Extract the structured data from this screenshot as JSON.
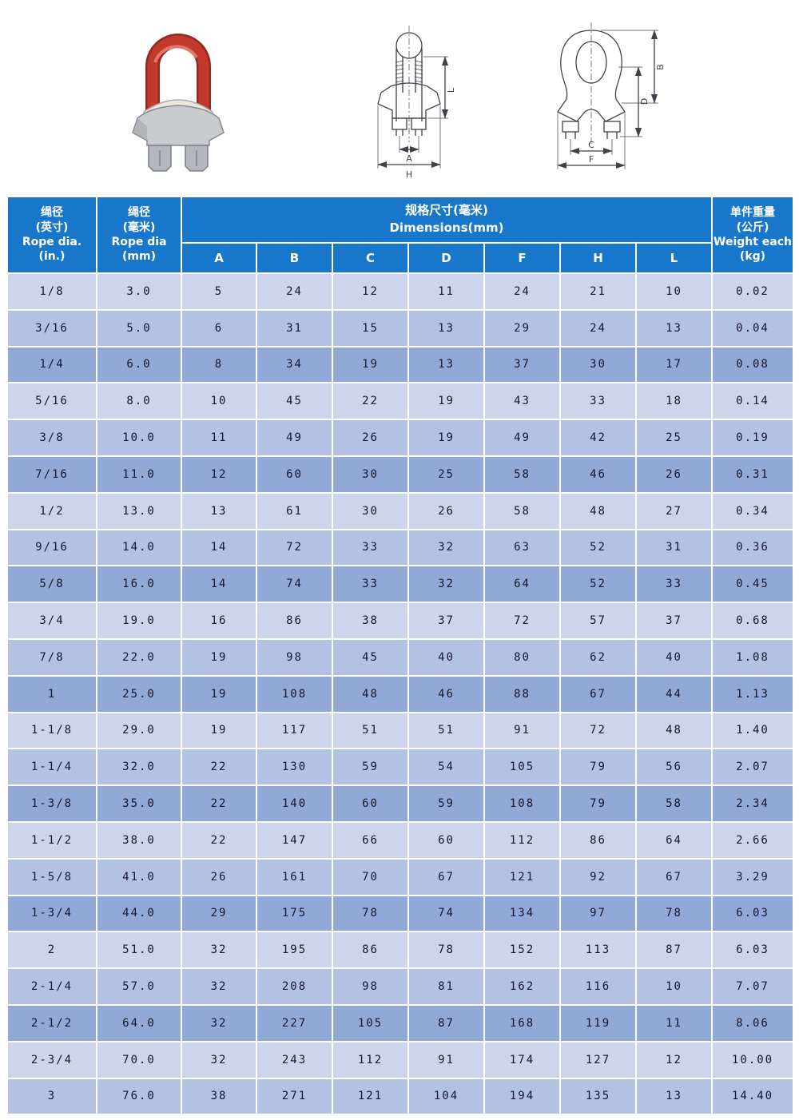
{
  "colors": {
    "header_blue": "#1877cb",
    "row_light": "#ccd5eb",
    "row_medium": "#b3c2e3",
    "row_dark": "#92a8d6",
    "grid_white": "#ffffff",
    "cell_text": "#15152e",
    "header_text": "#ffffff",
    "drawing_stroke": "#3c4248",
    "photo_red": "#c0392b",
    "photo_red_dark": "#8e2a20",
    "photo_gray": "#c9cbce"
  },
  "figures": {
    "photo": {
      "name": "wire rope clip product photo"
    },
    "front_view": {
      "labels": {
        "a": "A",
        "h": "H",
        "l": "L"
      }
    },
    "side_view": {
      "labels": {
        "b": "B",
        "c": "C",
        "d": "D",
        "f": "F"
      }
    }
  },
  "table": {
    "header": {
      "rope_in": "绳径\n(英寸)\nRope dia.\n(in.)",
      "rope_mm": "绳径\n(毫米)\nRope dia\n(mm)",
      "dimensions": "规格尺寸(毫米)\nDimensions(mm)",
      "dim_letters": [
        "A",
        "B",
        "C",
        "D",
        "F",
        "H",
        "L"
      ],
      "weight": "单件重量\n(公斤)\nWeight each\n(kg)"
    },
    "rows": [
      [
        "1/8",
        "3.0",
        "5",
        "24",
        "12",
        "11",
        "24",
        "21",
        "10",
        "0.02"
      ],
      [
        "3/16",
        "5.0",
        "6",
        "31",
        "15",
        "13",
        "29",
        "24",
        "13",
        "0.04"
      ],
      [
        "1/4",
        "6.0",
        "8",
        "34",
        "19",
        "13",
        "37",
        "30",
        "17",
        "0.08"
      ],
      [
        "5/16",
        "8.0",
        "10",
        "45",
        "22",
        "19",
        "43",
        "33",
        "18",
        "0.14"
      ],
      [
        "3/8",
        "10.0",
        "11",
        "49",
        "26",
        "19",
        "49",
        "42",
        "25",
        "0.19"
      ],
      [
        "7/16",
        "11.0",
        "12",
        "60",
        "30",
        "25",
        "58",
        "46",
        "26",
        "0.31"
      ],
      [
        "1/2",
        "13.0",
        "13",
        "61",
        "30",
        "26",
        "58",
        "48",
        "27",
        "0.34"
      ],
      [
        "9/16",
        "14.0",
        "14",
        "72",
        "33",
        "32",
        "63",
        "52",
        "31",
        "0.36"
      ],
      [
        "5/8",
        "16.0",
        "14",
        "74",
        "33",
        "32",
        "64",
        "52",
        "33",
        "0.45"
      ],
      [
        "3/4",
        "19.0",
        "16",
        "86",
        "38",
        "37",
        "72",
        "57",
        "37",
        "0.68"
      ],
      [
        "7/8",
        "22.0",
        "19",
        "98",
        "45",
        "40",
        "80",
        "62",
        "40",
        "1.08"
      ],
      [
        "1",
        "25.0",
        "19",
        "108",
        "48",
        "46",
        "88",
        "67",
        "44",
        "1.13"
      ],
      [
        "1-1/8",
        "29.0",
        "19",
        "117",
        "51",
        "51",
        "91",
        "72",
        "48",
        "1.40"
      ],
      [
        "1-1/4",
        "32.0",
        "22",
        "130",
        "59",
        "54",
        "105",
        "79",
        "56",
        "2.07"
      ],
      [
        "1-3/8",
        "35.0",
        "22",
        "140",
        "60",
        "59",
        "108",
        "79",
        "58",
        "2.34"
      ],
      [
        "1-1/2",
        "38.0",
        "22",
        "147",
        "66",
        "60",
        "112",
        "86",
        "64",
        "2.66"
      ],
      [
        "1-5/8",
        "41.0",
        "26",
        "161",
        "70",
        "67",
        "121",
        "92",
        "67",
        "3.29"
      ],
      [
        "1-3/4",
        "44.0",
        "29",
        "175",
        "78",
        "74",
        "134",
        "97",
        "78",
        "6.03"
      ],
      [
        "2",
        "51.0",
        "32",
        "195",
        "86",
        "78",
        "152",
        "113",
        "87",
        "6.03"
      ],
      [
        "2-1/4",
        "57.0",
        "32",
        "208",
        "98",
        "81",
        "162",
        "116",
        "10",
        "7.07"
      ],
      [
        "2-1/2",
        "64.0",
        "32",
        "227",
        "105",
        "87",
        "168",
        "119",
        "11",
        "8.06"
      ],
      [
        "2-3/4",
        "70.0",
        "32",
        "243",
        "112",
        "91",
        "174",
        "127",
        "12",
        "10.00"
      ],
      [
        "3",
        "76.0",
        "38",
        "271",
        "121",
        "104",
        "194",
        "135",
        "13",
        "14.40"
      ]
    ]
  }
}
